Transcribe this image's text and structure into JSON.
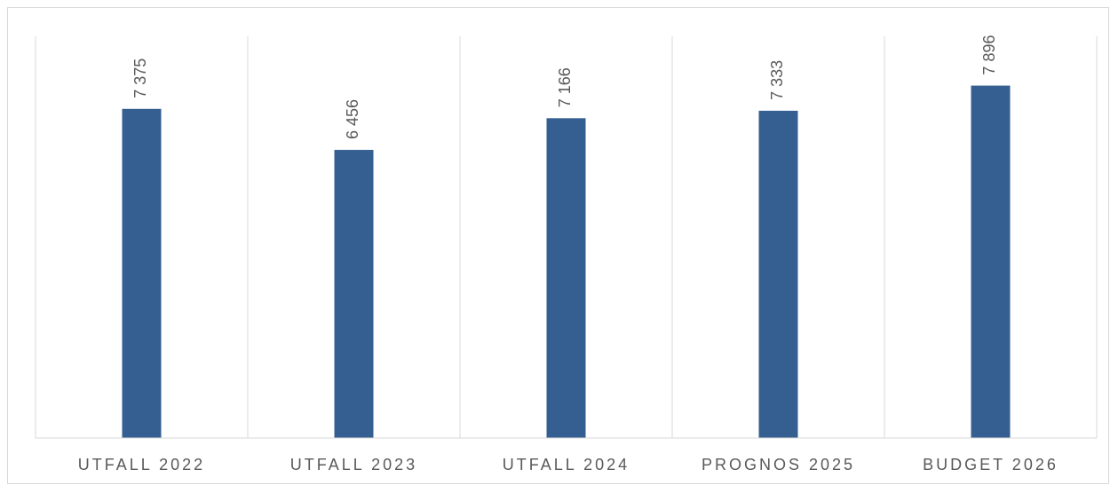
{
  "chart_data": {
    "type": "bar",
    "categories": [
      "UTFALL 2022",
      "UTFALL 2023",
      "UTFALL 2024",
      "PROGNOS 2025",
      "BUDGET 2026"
    ],
    "values": [
      7375,
      6456,
      7166,
      7333,
      7896
    ],
    "value_labels": [
      "7 375",
      "6 456",
      "7 166",
      "7 333",
      "7 896"
    ],
    "color": "#355f91",
    "ylim": [
      0,
      9000
    ]
  }
}
